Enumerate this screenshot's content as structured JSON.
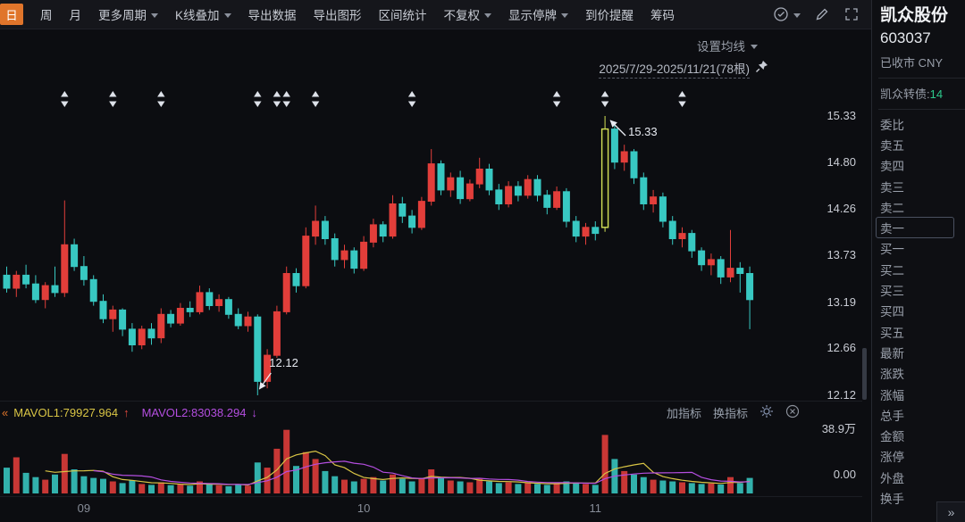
{
  "toolbar": {
    "period_active": "日",
    "items": [
      {
        "name": "period-week",
        "label": "周"
      },
      {
        "name": "period-month",
        "label": "月"
      },
      {
        "name": "more-periods",
        "label": "更多周期",
        "caret": true
      },
      {
        "name": "kline-overlay",
        "label": "K线叠加",
        "caret": true
      },
      {
        "name": "export-data",
        "label": "导出数据"
      },
      {
        "name": "export-image",
        "label": "导出图形"
      },
      {
        "name": "range-statistics",
        "label": "区间统计"
      },
      {
        "name": "adjustment-mode",
        "label": "不复权",
        "caret": true
      },
      {
        "name": "show-suspended",
        "label": "显示停牌",
        "caret": true
      },
      {
        "name": "price-alert",
        "label": "到价提醒"
      },
      {
        "name": "chip-distribution",
        "label": "筹码"
      }
    ]
  },
  "chart_header": {
    "ma_settings_label": "设置均线",
    "date_range": "2025/7/29-2025/11/21(78根)"
  },
  "price_axis": {
    "labels": [
      "15.33",
      "14.80",
      "14.26",
      "13.73",
      "13.19",
      "12.66",
      "12.12"
    ]
  },
  "volume_axis": {
    "max": "38.9万",
    "min": "0.00"
  },
  "annotations": {
    "high": "15.33",
    "low": "12.12"
  },
  "volume_header": {
    "mavol1": "MAVOL1:79927.964",
    "up_arrow": "↑",
    "mavol2": "MAVOL2:83038.294",
    "down_arrow": "↓",
    "add_indicator": "加指标",
    "switch_indicator": "换指标"
  },
  "pager": {
    "next": "»"
  },
  "quote_panel": {
    "name": "凯众股份",
    "code": "603037",
    "status": "已收市 CNY",
    "bond_label": "凯众转债:",
    "bond_value": "14",
    "rows": [
      {
        "name": "bid-ask-ratio",
        "label": "委比"
      },
      {
        "name": "sell-5",
        "label": "卖五"
      },
      {
        "name": "sell-4",
        "label": "卖四"
      },
      {
        "name": "sell-3",
        "label": "卖三"
      },
      {
        "name": "sell-2",
        "label": "卖二"
      },
      {
        "name": "sell-1",
        "label": "卖一",
        "selected": true
      },
      {
        "name": "buy-1",
        "label": "买一"
      },
      {
        "name": "buy-2",
        "label": "买二"
      },
      {
        "name": "buy-3",
        "label": "买三"
      },
      {
        "name": "buy-4",
        "label": "买四"
      },
      {
        "name": "buy-5",
        "label": "买五"
      },
      {
        "name": "latest-price",
        "label": "最新"
      },
      {
        "name": "change",
        "label": "涨跌"
      },
      {
        "name": "change-percent",
        "label": "涨幅"
      },
      {
        "name": "total-volume",
        "label": "总手"
      },
      {
        "name": "turnover",
        "label": "金额"
      },
      {
        "name": "limit-up",
        "label": "涨停"
      },
      {
        "name": "outer-volume",
        "label": "外盘"
      },
      {
        "name": "turnover-rate",
        "label": "换手"
      }
    ]
  },
  "chart_data": {
    "type": "candlestick",
    "symbol": "凯众股份 603037",
    "period": "日",
    "date_range": "2025/7/29-2025/11/21",
    "bar_count": 78,
    "ylim": [
      12.12,
      15.33
    ],
    "price_ticks": [
      15.33,
      14.8,
      14.26,
      13.73,
      13.19,
      12.66,
      12.12
    ],
    "volume_ylim": [
      0,
      389000
    ],
    "mavol1": 79927.964,
    "mavol2": 83038.294,
    "high_label": {
      "index": 62,
      "price": 15.33
    },
    "low_label": {
      "index": 26,
      "price": 12.12
    },
    "selected_index": 62,
    "event_marker_indices": [
      6,
      11,
      16,
      26,
      28,
      29,
      32,
      42,
      57,
      62,
      70
    ],
    "x_month_ticks": [
      {
        "label": "09",
        "index": 8
      },
      {
        "label": "10",
        "index": 37
      },
      {
        "label": "11",
        "index": 61
      }
    ],
    "colors": {
      "up": "#e23e3a",
      "down": "#38c8c2",
      "selected": "#d4e157",
      "mavol1": "#d9c545",
      "mavol2": "#b44ee0"
    },
    "candles_format": [
      "open",
      "high",
      "low",
      "close",
      "volume"
    ],
    "candles": [
      [
        13.5,
        13.6,
        13.3,
        13.35,
        150000
      ],
      [
        13.35,
        13.55,
        13.25,
        13.5,
        210000
      ],
      [
        13.5,
        13.62,
        13.35,
        13.4,
        120000
      ],
      [
        13.4,
        13.5,
        13.18,
        13.22,
        95000
      ],
      [
        13.22,
        13.42,
        13.12,
        13.38,
        80000
      ],
      [
        13.38,
        13.6,
        13.25,
        13.3,
        110000
      ],
      [
        13.3,
        14.36,
        13.25,
        13.85,
        230000
      ],
      [
        13.85,
        13.92,
        13.55,
        13.6,
        140000
      ],
      [
        13.6,
        13.72,
        13.38,
        13.45,
        100000
      ],
      [
        13.45,
        13.5,
        13.15,
        13.2,
        90000
      ],
      [
        13.2,
        13.28,
        12.95,
        13.0,
        85000
      ],
      [
        13.0,
        13.15,
        12.85,
        13.1,
        70000
      ],
      [
        13.1,
        13.12,
        12.8,
        12.88,
        60000
      ],
      [
        12.88,
        12.95,
        12.62,
        12.7,
        75000
      ],
      [
        12.7,
        12.92,
        12.65,
        12.88,
        55000
      ],
      [
        12.88,
        12.95,
        12.7,
        12.78,
        50000
      ],
      [
        12.78,
        13.12,
        12.72,
        13.05,
        65000
      ],
      [
        13.05,
        13.1,
        12.9,
        12.95,
        48000
      ],
      [
        12.95,
        13.18,
        12.92,
        13.12,
        52000
      ],
      [
        13.12,
        13.2,
        13.02,
        13.08,
        45000
      ],
      [
        13.08,
        13.38,
        13.05,
        13.3,
        70000
      ],
      [
        13.3,
        13.35,
        13.1,
        13.15,
        55000
      ],
      [
        13.15,
        13.28,
        13.08,
        13.22,
        48000
      ],
      [
        13.22,
        13.25,
        13.0,
        13.05,
        42000
      ],
      [
        13.05,
        13.12,
        12.88,
        12.92,
        50000
      ],
      [
        12.92,
        13.08,
        12.85,
        13.02,
        45000
      ],
      [
        13.02,
        13.05,
        12.12,
        12.28,
        180000
      ],
      [
        12.28,
        12.65,
        12.2,
        12.58,
        150000
      ],
      [
        12.58,
        13.15,
        12.55,
        13.08,
        260000
      ],
      [
        13.08,
        13.6,
        13.05,
        13.52,
        370000
      ],
      [
        13.52,
        13.58,
        13.3,
        13.38,
        160000
      ],
      [
        13.38,
        14.05,
        13.35,
        13.95,
        240000
      ],
      [
        13.95,
        14.3,
        13.85,
        14.12,
        200000
      ],
      [
        14.12,
        14.18,
        13.85,
        13.92,
        130000
      ],
      [
        13.92,
        13.98,
        13.6,
        13.68,
        100000
      ],
      [
        13.68,
        13.85,
        13.58,
        13.78,
        80000
      ],
      [
        13.78,
        13.82,
        13.52,
        13.58,
        70000
      ],
      [
        13.58,
        13.95,
        13.55,
        13.88,
        85000
      ],
      [
        13.88,
        14.15,
        13.82,
        14.08,
        95000
      ],
      [
        14.08,
        14.12,
        13.88,
        13.95,
        75000
      ],
      [
        13.95,
        14.42,
        13.92,
        14.32,
        110000
      ],
      [
        14.32,
        14.4,
        14.1,
        14.18,
        85000
      ],
      [
        14.18,
        14.25,
        13.98,
        14.05,
        70000
      ],
      [
        14.05,
        14.4,
        14.02,
        14.35,
        90000
      ],
      [
        14.35,
        14.95,
        14.3,
        14.78,
        140000
      ],
      [
        14.78,
        14.82,
        14.42,
        14.48,
        90000
      ],
      [
        14.48,
        14.68,
        14.4,
        14.62,
        75000
      ],
      [
        14.62,
        14.7,
        14.32,
        14.38,
        70000
      ],
      [
        14.38,
        14.6,
        14.35,
        14.55,
        65000
      ],
      [
        14.55,
        14.85,
        14.5,
        14.72,
        85000
      ],
      [
        14.72,
        14.78,
        14.42,
        14.48,
        70000
      ],
      [
        14.48,
        14.55,
        14.25,
        14.32,
        60000
      ],
      [
        14.32,
        14.58,
        14.28,
        14.52,
        65000
      ],
      [
        14.52,
        14.58,
        14.35,
        14.42,
        55000
      ],
      [
        14.42,
        14.65,
        14.38,
        14.6,
        60000
      ],
      [
        14.6,
        14.65,
        14.35,
        14.42,
        55000
      ],
      [
        14.42,
        14.48,
        14.2,
        14.28,
        50000
      ],
      [
        14.28,
        14.52,
        14.25,
        14.46,
        60000
      ],
      [
        14.46,
        14.5,
        14.05,
        14.12,
        70000
      ],
      [
        14.12,
        14.18,
        13.88,
        13.95,
        65000
      ],
      [
        13.95,
        14.1,
        13.85,
        14.05,
        55000
      ],
      [
        14.05,
        14.12,
        13.9,
        13.98,
        50000
      ],
      [
        14.05,
        15.33,
        14.0,
        15.18,
        340000
      ],
      [
        15.18,
        15.22,
        14.72,
        14.8,
        200000
      ],
      [
        14.8,
        15.0,
        14.7,
        14.92,
        130000
      ],
      [
        14.92,
        14.95,
        14.55,
        14.62,
        110000
      ],
      [
        14.62,
        14.68,
        14.25,
        14.32,
        95000
      ],
      [
        14.32,
        14.48,
        14.22,
        14.4,
        80000
      ],
      [
        14.4,
        14.45,
        14.05,
        14.12,
        75000
      ],
      [
        14.12,
        14.18,
        13.85,
        13.92,
        70000
      ],
      [
        13.92,
        14.05,
        13.82,
        13.98,
        65000
      ],
      [
        13.98,
        14.02,
        13.7,
        13.78,
        60000
      ],
      [
        13.78,
        13.82,
        13.55,
        13.62,
        55000
      ],
      [
        13.62,
        13.75,
        13.5,
        13.68,
        58000
      ],
      [
        13.68,
        13.72,
        13.4,
        13.48,
        52000
      ],
      [
        13.48,
        14.02,
        13.42,
        13.58,
        95000
      ],
      [
        13.58,
        13.65,
        13.3,
        13.52,
        60000
      ],
      [
        13.52,
        13.6,
        12.88,
        13.22,
        90000
      ]
    ]
  }
}
